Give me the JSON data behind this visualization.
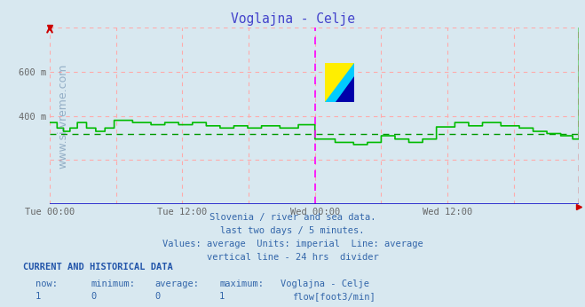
{
  "title": "Voglajna - Celje",
  "title_color": "#4444cc",
  "bg_color": "#d8e8f0",
  "plot_bg_color": "#d8e8f0",
  "grid_color": "#ffaaaa",
  "avg_line_color": "#009900",
  "flow_line_color": "#00bb00",
  "divider_color": "#ff00ff",
  "end_line_color": "#cc0000",
  "tick_color": "#666666",
  "watermark_color": "#6688aa",
  "watermark_text": "www.si-vreme.com",
  "ylim": [
    0,
    800
  ],
  "ytick_vals": [
    400,
    600
  ],
  "ytick_labels": [
    "400 m",
    "600 m"
  ],
  "xtick_positions": [
    0,
    144,
    288,
    432
  ],
  "xtick_labels": [
    "Tue 00:00",
    "Tue 12:00",
    "Wed 00:00",
    "Wed 12:00"
  ],
  "n_points": 576,
  "avg_value": 320,
  "subtitle_lines": [
    "Slovenia / river and sea data.",
    "last two days / 5 minutes.",
    "Values: average  Units: imperial  Line: average",
    "vertical line - 24 hrs  divider"
  ],
  "footer_header": "CURRENT AND HISTORICAL DATA",
  "footer_cols": [
    "now:",
    "minimum:",
    "average:",
    "maximum:",
    "Voglajna - Celje"
  ],
  "footer_vals": [
    "1",
    "0",
    "0",
    "1"
  ],
  "legend_label": "flow[foot3/min]",
  "legend_color": "#00bb00",
  "text_color": "#3366aa",
  "header_color": "#2255aa"
}
